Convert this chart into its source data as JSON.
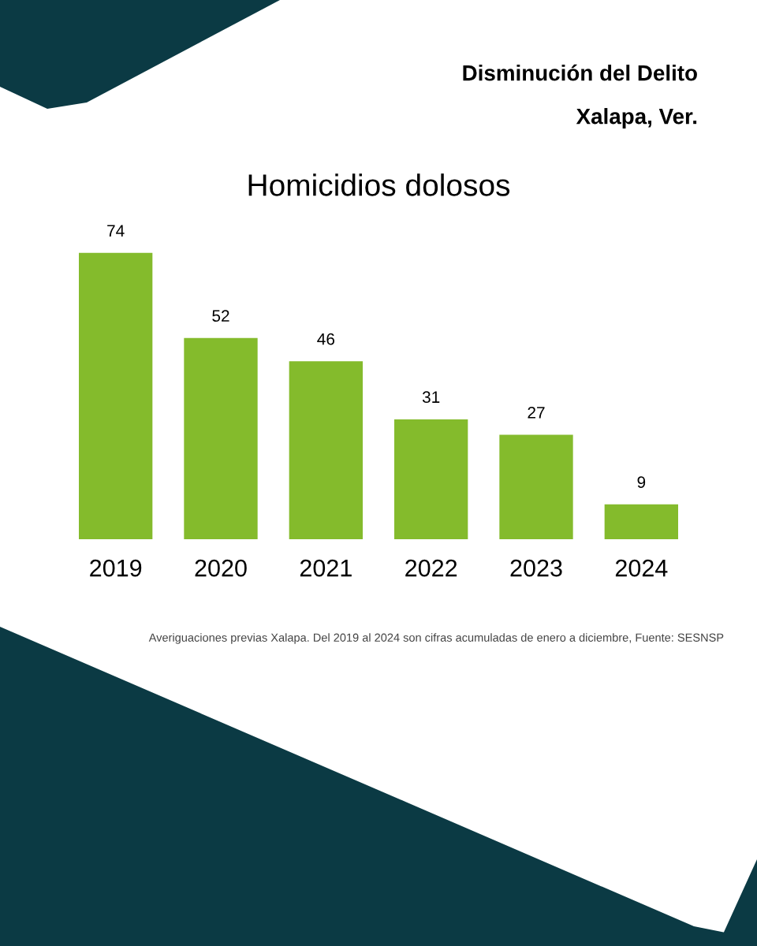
{
  "chart_data": {
    "type": "bar",
    "title": "Homicidios dolosos",
    "categories": [
      "2019",
      "2020",
      "2021",
      "2022",
      "2023",
      "2024"
    ],
    "values": [
      74,
      52,
      46,
      31,
      27,
      9
    ],
    "color": "#84bb2c",
    "data_labels": true,
    "grid": false,
    "legend": false,
    "annotations": [
      "Disminución del Delito",
      "Xalapa, Ver.",
      "Averiguaciones previas Xalapa. Del 2019 al 2024 son cifras acumuladas de enero a diciembre, Fuente: SESNSP"
    ]
  }
}
